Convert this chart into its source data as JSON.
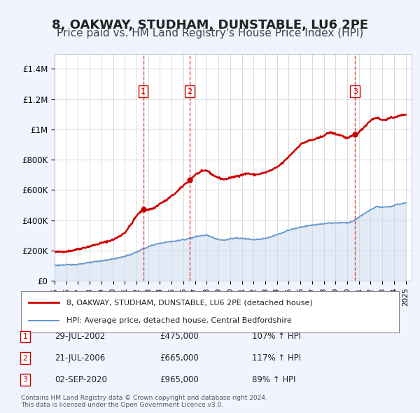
{
  "title": "8, OAKWAY, STUDHAM, DUNSTABLE, LU6 2PE",
  "subtitle": "Price paid vs. HM Land Registry's House Price Index (HPI)",
  "ylim": [
    0,
    1500000
  ],
  "yticks": [
    0,
    200000,
    400000,
    600000,
    800000,
    1000000,
    1200000,
    1400000
  ],
  "ytick_labels": [
    "£0",
    "£200K",
    "£400K",
    "£600K",
    "£800K",
    "£1M",
    "£1.2M",
    "£1.4M"
  ],
  "xlim_start": 1995.0,
  "xlim_end": 2025.5,
  "xtick_years": [
    1995,
    1996,
    1997,
    1998,
    1999,
    2000,
    2001,
    2002,
    2003,
    2004,
    2005,
    2006,
    2007,
    2008,
    2009,
    2010,
    2011,
    2012,
    2013,
    2014,
    2015,
    2016,
    2017,
    2018,
    2019,
    2020,
    2021,
    2022,
    2023,
    2024,
    2025
  ],
  "sales": [
    {
      "date_num": 2002.57,
      "price": 475000,
      "label": "1"
    },
    {
      "date_num": 2006.55,
      "price": 665000,
      "label": "2"
    },
    {
      "date_num": 2020.67,
      "price": 965000,
      "label": "3"
    }
  ],
  "vline_dates": [
    2002.57,
    2006.55,
    2020.67
  ],
  "sale_info": [
    {
      "num": "1",
      "date": "29-JUL-2002",
      "price": "£475,000",
      "hpi": "107% ↑ HPI"
    },
    {
      "num": "2",
      "date": "21-JUL-2006",
      "price": "£665,000",
      "hpi": "117% ↑ HPI"
    },
    {
      "num": "3",
      "date": "02-SEP-2020",
      "price": "£965,000",
      "hpi": "89% ↑ HPI"
    }
  ],
  "legend_entries": [
    {
      "label": "8, OAKWAY, STUDHAM, DUNSTABLE, LU6 2PE (detached house)",
      "color": "#cc0000",
      "lw": 2.0
    },
    {
      "label": "HPI: Average price, detached house, Central Bedfordshire",
      "color": "#6699cc",
      "lw": 1.5
    }
  ],
  "footer": "Contains HM Land Registry data © Crown copyright and database right 2024.\nThis data is licensed under the Open Government Licence v3.0.",
  "bg_color": "#f0f4ff",
  "plot_bg": "#ffffff",
  "grid_color": "#cccccc",
  "title_fontsize": 13,
  "subtitle_fontsize": 11
}
